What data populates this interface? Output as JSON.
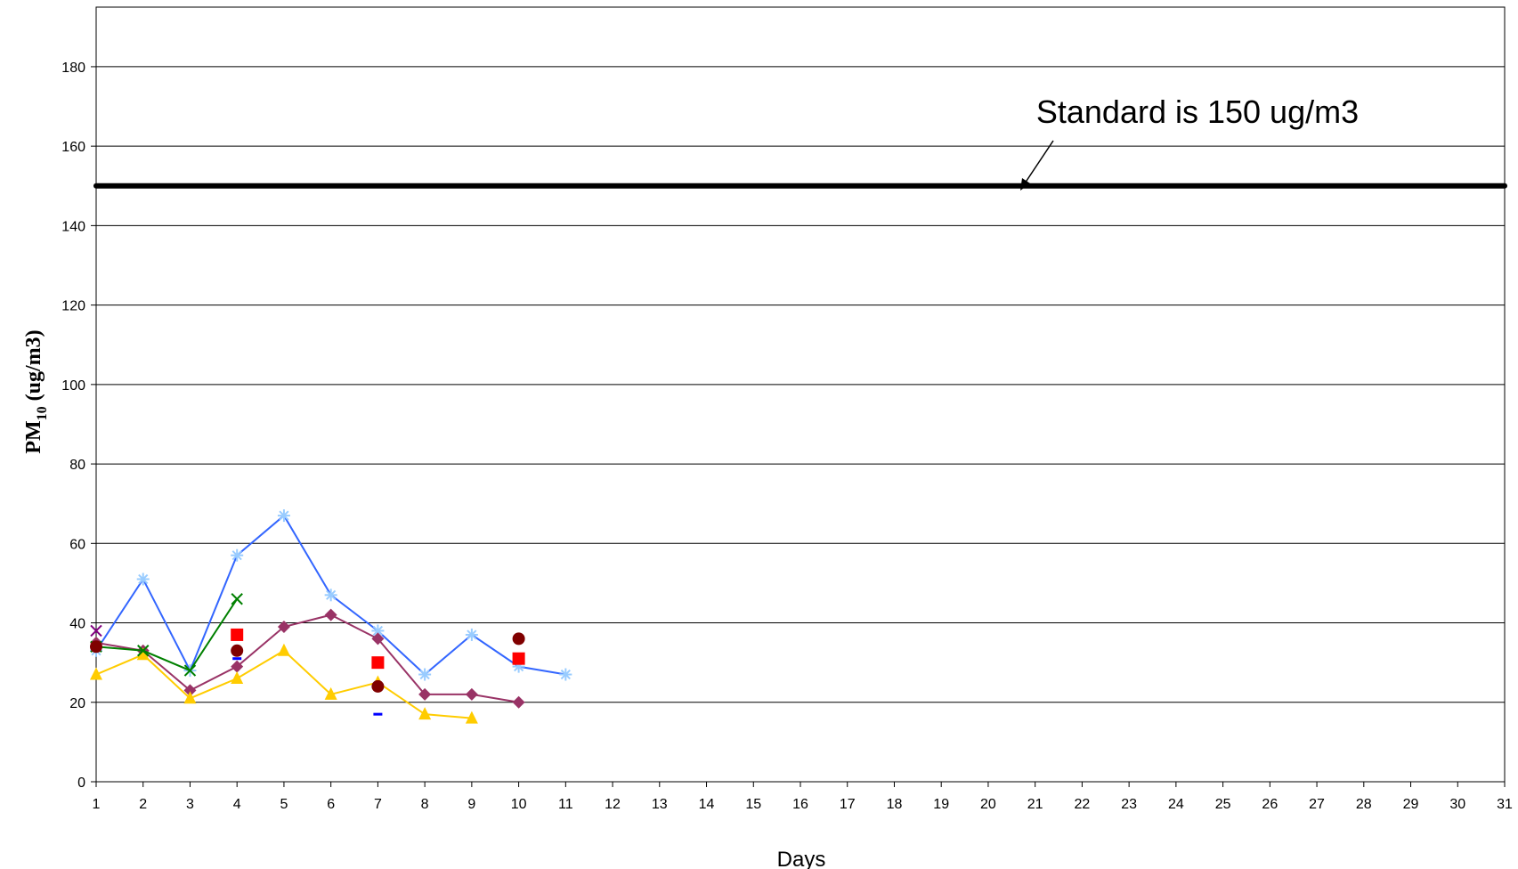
{
  "chart_data": {
    "type": "line",
    "title": "",
    "xlabel": "Days",
    "ylabel": {
      "base": "PM",
      "sub": "10",
      "rest": " (ug/m3)"
    },
    "x_categories": [
      1,
      2,
      3,
      4,
      5,
      6,
      7,
      8,
      9,
      10,
      11,
      12,
      13,
      14,
      15,
      16,
      17,
      18,
      19,
      20,
      21,
      22,
      23,
      24,
      25,
      26,
      27,
      28,
      29,
      30,
      31
    ],
    "ylim": [
      0,
      195
    ],
    "yticks": [
      0,
      20,
      40,
      60,
      80,
      100,
      120,
      140,
      160,
      180
    ],
    "grid": true,
    "standard": {
      "value": 150,
      "label": "Standard is 150 ug/m3",
      "color": "#000000"
    },
    "series": [
      {
        "marker": "asterisk",
        "color": "#3366ff",
        "marker_color": "#99ccff",
        "line": true,
        "points": [
          [
            1,
            33
          ],
          [
            2,
            51
          ],
          [
            3,
            28
          ],
          [
            4,
            57
          ],
          [
            5,
            67
          ],
          [
            6,
            47
          ],
          [
            7,
            38
          ],
          [
            8,
            27
          ],
          [
            9,
            37
          ],
          [
            10,
            29
          ],
          [
            11,
            27
          ]
        ]
      },
      {
        "marker": "diamond",
        "color": "#993366",
        "marker_color": "#993366",
        "line": true,
        "points": [
          [
            1,
            35
          ],
          [
            2,
            33
          ],
          [
            3,
            23
          ],
          [
            4,
            29
          ],
          [
            5,
            39
          ],
          [
            6,
            42
          ],
          [
            7,
            36
          ],
          [
            8,
            22
          ],
          [
            9,
            22
          ],
          [
            10,
            20
          ]
        ]
      },
      {
        "marker": "triangle",
        "color": "#ffcc00",
        "marker_color": "#ffcc00",
        "line": true,
        "points": [
          [
            1,
            27
          ],
          [
            2,
            32
          ],
          [
            3,
            21
          ],
          [
            4,
            26
          ],
          [
            5,
            33
          ],
          [
            6,
            22
          ],
          [
            7,
            25
          ],
          [
            8,
            17
          ],
          [
            9,
            16
          ]
        ]
      },
      {
        "marker": "x",
        "color": "#008000",
        "marker_color": "#008000",
        "line": true,
        "points": [
          [
            1,
            34
          ],
          [
            2,
            33
          ],
          [
            3,
            28
          ],
          [
            4,
            46
          ]
        ]
      },
      {
        "marker": "square",
        "color": "#ff0000",
        "marker_color": "#ff0000",
        "line": false,
        "points": [
          [
            4,
            37
          ],
          [
            7,
            30
          ],
          [
            10,
            31
          ]
        ]
      },
      {
        "marker": "circle",
        "color": "#800000",
        "marker_color": "#800000",
        "line": false,
        "points": [
          [
            1,
            34
          ],
          [
            4,
            33
          ],
          [
            7,
            24
          ],
          [
            10,
            36
          ]
        ]
      },
      {
        "marker": "dash",
        "color": "#0000ff",
        "marker_color": "#0000ff",
        "line": false,
        "points": [
          [
            4,
            31
          ],
          [
            7,
            17
          ]
        ]
      },
      {
        "marker": "x",
        "color": "#800080",
        "marker_color": "#800080",
        "line": false,
        "points": [
          [
            1,
            38
          ]
        ]
      }
    ]
  }
}
